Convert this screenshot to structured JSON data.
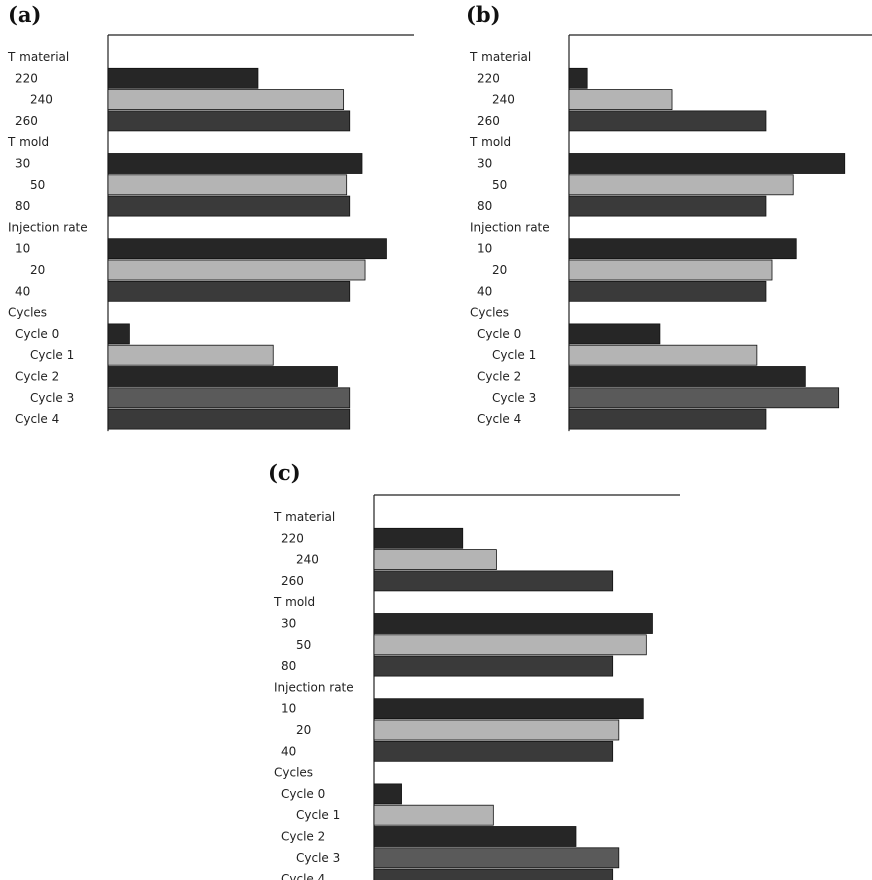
{
  "chart_data": [
    {
      "type": "bar",
      "panel_label": "(a)",
      "categories": [
        "T material",
        "220",
        "240",
        "260",
        "T mold",
        "30",
        "50",
        "80",
        "Injection rate",
        "10",
        "20",
        "40",
        "Cycles",
        "Cycle 0",
        "Cycle 1",
        "Cycle 2",
        "Cycle 3",
        "Cycle 4"
      ],
      "values": [
        null,
        49,
        77,
        79,
        null,
        83,
        78,
        79,
        null,
        91,
        84,
        79,
        null,
        7,
        54,
        75,
        79,
        79
      ],
      "xlim": [
        0,
        100
      ],
      "grid": false
    },
    {
      "type": "bar",
      "panel_label": "(b)",
      "categories": [
        "T material",
        "220",
        "240",
        "260",
        "T mold",
        "30",
        "50",
        "80",
        "Injection rate",
        "10",
        "20",
        "40",
        "Cycles",
        "Cycle 0",
        "Cycle 1",
        "Cycle 2",
        "Cycle 3",
        "Cycle 4"
      ],
      "values": [
        null,
        6,
        34,
        65,
        null,
        91,
        74,
        65,
        null,
        75,
        67,
        65,
        null,
        30,
        62,
        78,
        89,
        65
      ],
      "xlim": [
        0,
        100
      ],
      "grid": false
    },
    {
      "type": "bar",
      "panel_label": "(c)",
      "categories": [
        "T material",
        "220",
        "240",
        "260",
        "T mold",
        "30",
        "50",
        "80",
        "Injection rate",
        "10",
        "20",
        "40",
        "Cycles",
        "Cycle 0",
        "Cycle 1",
        "Cycle 2",
        "Cycle 3",
        "Cycle 4"
      ],
      "values": [
        null,
        29,
        40,
        78,
        null,
        91,
        89,
        78,
        null,
        88,
        80,
        78,
        null,
        9,
        39,
        66,
        80,
        78
      ],
      "xlim": [
        0,
        100
      ],
      "grid": false
    }
  ],
  "colors": {
    "dark": "#262626",
    "light": "#b4b4b4",
    "mid": "#3a3a3a",
    "cycle3": "#5a5a5a",
    "axis": "#222222"
  }
}
